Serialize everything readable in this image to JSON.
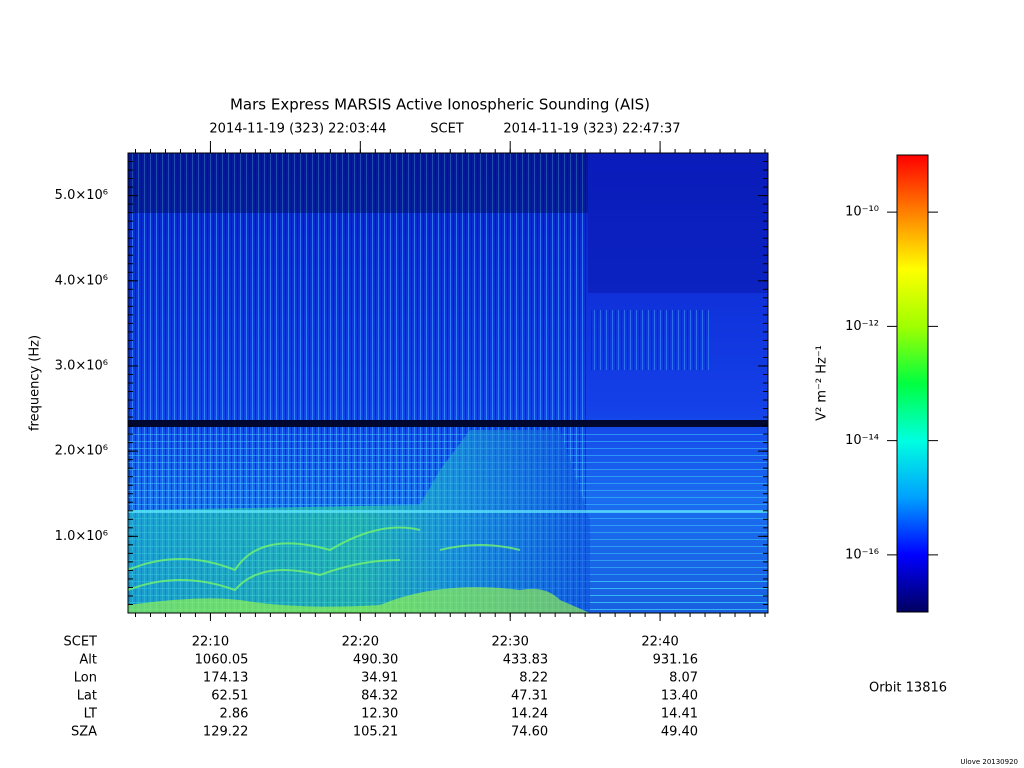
{
  "chart_data": {
    "type": "spectrogram",
    "title": "Mars Express MARSIS Active Ionospheric Sounding (AIS)",
    "subtitle": [
      "2014-11-19 (323) 22:03:44",
      "SCET",
      "2014-11-19 (323) 22:47:37"
    ],
    "ylabel": "frequency (Hz)",
    "ylim": [
      100000,
      5500000
    ],
    "yticks": [
      {
        "value": 1000000,
        "label": "1.0×10⁶"
      },
      {
        "value": 2000000,
        "label": "2.0×10⁶"
      },
      {
        "value": 3000000,
        "label": "3.0×10⁶"
      },
      {
        "value": 4000000,
        "label": "4.0×10⁶"
      },
      {
        "value": 5000000,
        "label": "5.0×10⁶"
      }
    ],
    "xlim": [
      1324.5,
      1367.2
    ],
    "xticks": [
      {
        "value": 1330,
        "label": "22:10"
      },
      {
        "value": 1340,
        "label": "22:20"
      },
      {
        "value": 1350,
        "label": "22:30"
      },
      {
        "value": 1360,
        "label": "22:40"
      }
    ],
    "colorbar": {
      "label": "V² m⁻² Hz⁻¹",
      "log_scale": true,
      "lim": [
        1e-17,
        1e-09
      ],
      "ticks": [
        {
          "value": 1e-10,
          "label": "10⁻¹⁰"
        },
        {
          "value": 1e-12,
          "label": "10⁻¹²"
        },
        {
          "value": 1e-14,
          "label": "10⁻¹⁴"
        },
        {
          "value": 1e-16,
          "label": "10⁻¹⁶"
        }
      ],
      "colors": [
        "#000060",
        "#0000ff",
        "#00a0ff",
        "#00ffe0",
        "#00ff40",
        "#a0ff00",
        "#ffff00",
        "#ff8000",
        "#ff0000"
      ]
    },
    "ephemeris": {
      "time_label": "SCET",
      "rows": [
        {
          "label": "Alt",
          "values": [
            "1060.05",
            "490.30",
            "433.83",
            "931.16"
          ]
        },
        {
          "label": "Lon",
          "values": [
            "174.13",
            "34.91",
            "8.22",
            "8.07"
          ]
        },
        {
          "label": "Lat",
          "values": [
            "62.51",
            "84.32",
            "47.31",
            "13.40"
          ]
        },
        {
          "label": "LT",
          "values": [
            "2.86",
            "12.30",
            "14.24",
            "14.41"
          ]
        },
        {
          "label": "SZA",
          "values": [
            "129.22",
            "105.21",
            "74.60",
            "49.40"
          ]
        }
      ]
    },
    "orbit": "Orbit 13816",
    "credit": "Ulove 20130920"
  }
}
